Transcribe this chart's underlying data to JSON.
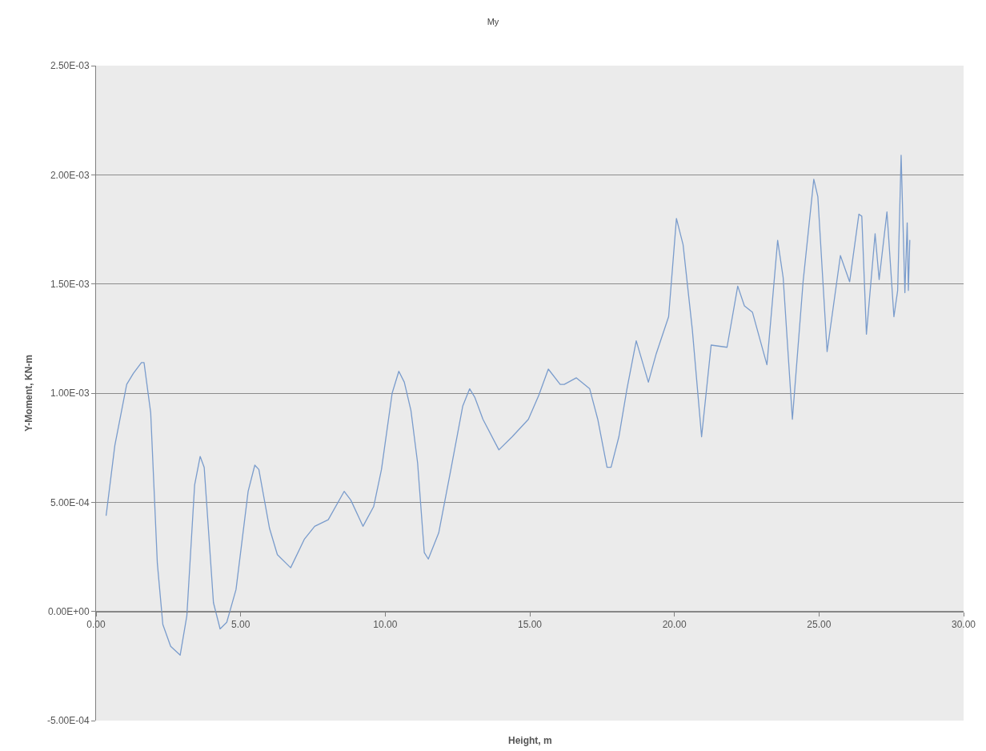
{
  "chart_data": {
    "type": "line",
    "title": "My",
    "xlabel": "Height, m",
    "ylabel": "Y-Moment, KN-m",
    "series": [
      {
        "color": "#7a9ccc",
        "x": [
          0.35,
          0.65,
          1.06,
          1.29,
          1.57,
          1.66,
          1.89,
          2.12,
          2.31,
          2.58,
          2.91,
          3.14,
          3.41,
          3.6,
          3.74,
          4.06,
          4.29,
          4.52,
          4.84,
          5.26,
          5.49,
          5.63,
          6.0,
          6.27,
          6.73,
          7.2,
          7.56,
          8.03,
          8.58,
          8.81,
          9.23,
          9.6,
          9.87,
          10.24,
          10.47,
          10.66,
          10.89,
          11.12,
          11.35,
          11.49,
          11.85,
          12.27,
          12.68,
          12.92,
          13.1,
          13.38,
          13.93,
          14.39,
          14.95,
          15.31,
          15.64,
          16.05,
          16.19,
          16.61,
          17.07,
          17.35,
          17.67,
          17.81,
          18.08,
          18.36,
          18.68,
          19.1,
          19.37,
          19.8,
          20.07,
          20.3,
          20.62,
          20.94,
          21.27,
          21.82,
          22.19,
          22.42,
          22.7,
          23.2,
          23.57,
          23.76,
          24.08,
          24.45,
          24.82,
          24.96,
          25.28,
          25.74,
          26.06,
          26.38,
          26.48,
          26.64,
          26.94,
          27.08,
          27.35,
          27.59,
          27.72,
          27.84,
          27.97,
          28.05,
          28.09,
          28.14
        ],
        "values": [
          0.00044,
          0.00076,
          0.00104,
          0.00109,
          0.00114,
          0.00114,
          0.00091,
          0.00022,
          -6e-05,
          -0.00016,
          -0.0002,
          -2e-05,
          0.00058,
          0.00071,
          0.00066,
          4e-05,
          -8e-05,
          -5e-05,
          0.0001,
          0.00055,
          0.00067,
          0.00065,
          0.00038,
          0.00026,
          0.0002,
          0.00033,
          0.00039,
          0.00042,
          0.00055,
          0.00051,
          0.00039,
          0.00048,
          0.00065,
          0.001,
          0.0011,
          0.00105,
          0.00092,
          0.00068,
          0.00027,
          0.00024,
          0.00036,
          0.00065,
          0.00094,
          0.00102,
          0.00098,
          0.00088,
          0.00074,
          0.0008,
          0.00088,
          0.00099,
          0.00111,
          0.00104,
          0.00104,
          0.00107,
          0.00102,
          0.00088,
          0.00066,
          0.00066,
          0.0008,
          0.00102,
          0.00124,
          0.00105,
          0.00118,
          0.00135,
          0.0018,
          0.00168,
          0.00129,
          0.0008,
          0.00122,
          0.00121,
          0.00149,
          0.0014,
          0.00137,
          0.00113,
          0.0017,
          0.00153,
          0.00088,
          0.00151,
          0.00198,
          0.0019,
          0.00119,
          0.00163,
          0.00151,
          0.00182,
          0.00181,
          0.00127,
          0.00173,
          0.00152,
          0.00183,
          0.00135,
          0.00147,
          0.00209,
          0.00146,
          0.00178,
          0.00147,
          0.0017
        ]
      }
    ],
    "xlim": [
      0,
      30
    ],
    "xticks": [
      {
        "value": 0,
        "label": "0.00"
      },
      {
        "value": 5,
        "label": "5.00"
      },
      {
        "value": 10,
        "label": "10.00"
      },
      {
        "value": 15,
        "label": "15.00"
      },
      {
        "value": 20,
        "label": "20.00"
      },
      {
        "value": 25,
        "label": "25.00"
      },
      {
        "value": 30,
        "label": "30.00"
      }
    ],
    "ylim": [
      -0.0005,
      0.0025
    ],
    "yticks": [
      {
        "value": -0.0005,
        "label": "-5.00E-04"
      },
      {
        "value": 0,
        "label": "0.00E+00"
      },
      {
        "value": 0.0005,
        "label": "5.00E-04"
      },
      {
        "value": 0.001,
        "label": "1.00E-03"
      },
      {
        "value": 0.0015,
        "label": "1.50E-03"
      },
      {
        "value": 0.002,
        "label": "2.00E-03"
      },
      {
        "value": 0.0025,
        "label": "2.50E-03"
      }
    ],
    "grid": "y",
    "marker": "none",
    "line_style": "solid"
  }
}
